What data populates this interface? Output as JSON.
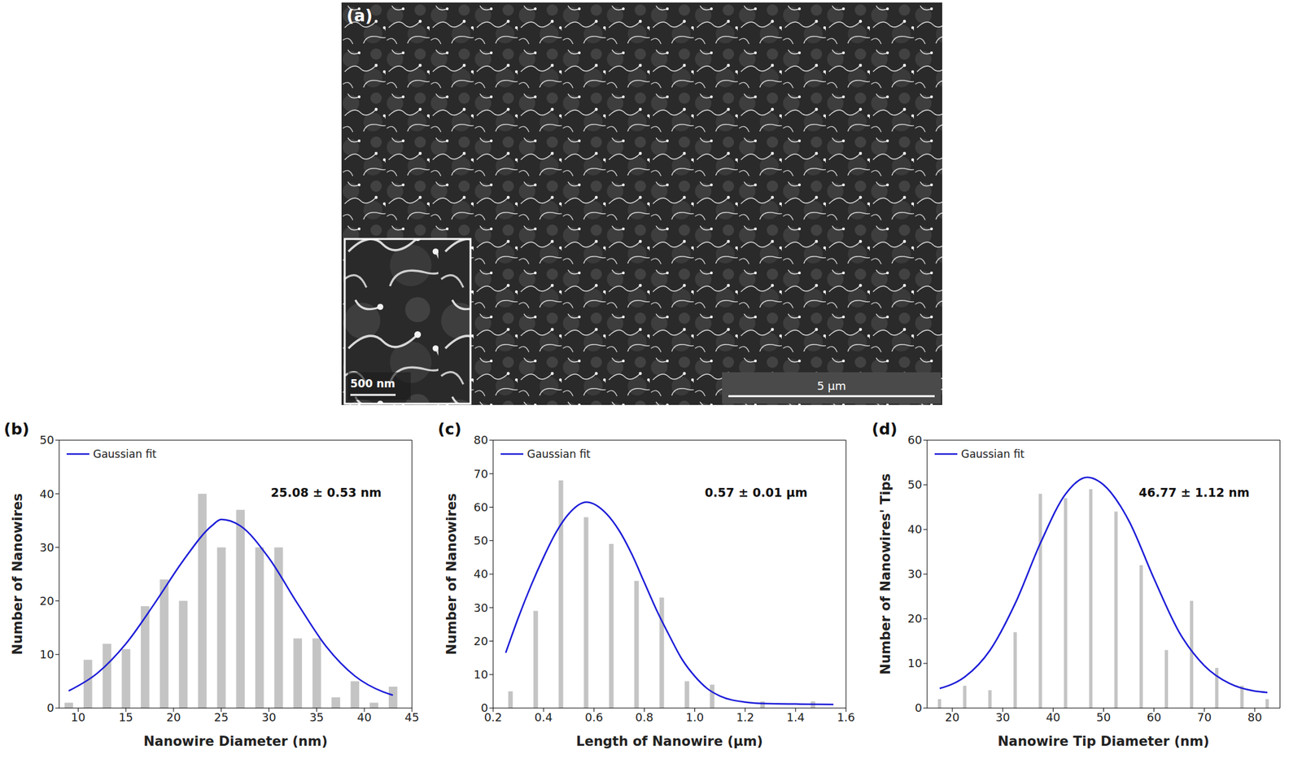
{
  "image": {
    "label": "(a)",
    "scale_bar": "5 µm",
    "inset_scale_bar": "500 nm"
  },
  "chart_data": [
    {
      "type": "histogram",
      "label": "(b)",
      "xlabel": "Nanowire Diameter (nm)",
      "ylabel": "Number of Nanowires",
      "annotation": "25.08 ± 0.53 nm",
      "bins": [
        8,
        10,
        12,
        14,
        16,
        18,
        20,
        22,
        24,
        26,
        28,
        30,
        32,
        34,
        36,
        38,
        40,
        42,
        44
      ],
      "values": [
        1,
        9,
        12,
        11,
        19,
        24,
        20,
        40,
        30,
        37,
        30,
        30,
        13,
        13,
        2,
        5,
        1,
        4
      ],
      "color": "#c4c4c4",
      "xlim": [
        8,
        45
      ],
      "xticks": [
        10,
        15,
        20,
        25,
        30,
        35,
        40,
        45
      ],
      "ylim": [
        0,
        50
      ],
      "yticks": [
        0,
        10,
        20,
        30,
        40,
        50
      ],
      "legend": "upper left",
      "series": [
        {
          "name": "Gaussian fit",
          "type": "line",
          "color": "#1c1cd8",
          "x": [
            9,
            12,
            15,
            18,
            21,
            24,
            25,
            27,
            30,
            33,
            36,
            39,
            42,
            43
          ],
          "values": [
            3.2,
            6.5,
            12,
            19.5,
            27.5,
            34,
            35.2,
            34,
            28,
            19.5,
            11.5,
            6,
            3,
            2.4
          ]
        }
      ]
    },
    {
      "type": "histogram",
      "label": "(c)",
      "xlabel": "Length of Nanowire (μm)",
      "ylabel": "Number of Nanowires",
      "annotation": "0.57 ± 0.01 μm",
      "bins": [
        0.22,
        0.32,
        0.42,
        0.52,
        0.62,
        0.72,
        0.82,
        0.92,
        1.02,
        1.12,
        1.22,
        1.32,
        1.42,
        1.52
      ],
      "values": [
        5,
        29,
        68,
        57,
        49,
        38,
        33,
        8,
        7,
        0,
        2,
        0,
        2
      ],
      "color": "#c4c4c4",
      "xlim": [
        0.2,
        1.6
      ],
      "xticks": [
        0.2,
        0.4,
        0.6,
        0.8,
        {
          "value": 1,
          "label": "1.0"
        },
        1.2,
        1.4,
        1.6
      ],
      "ylim": [
        0,
        80
      ],
      "yticks": [
        0,
        10,
        20,
        30,
        40,
        50,
        60,
        70,
        80
      ],
      "legend": "upper left",
      "series": [
        {
          "name": "Gaussian fit",
          "type": "line",
          "color": "#1c1cd8",
          "x": [
            0.25,
            0.3,
            0.35,
            0.4,
            0.45,
            0.5,
            0.57,
            0.65,
            0.7,
            0.75,
            0.8,
            0.85,
            0.9,
            0.95,
            1.0,
            1.05,
            1.1,
            1.2,
            1.3,
            1.4,
            1.55
          ],
          "values": [
            16.5,
            27,
            36.5,
            45,
            52.5,
            58,
            61.5,
            58,
            53,
            46,
            37.5,
            29,
            21.5,
            14.5,
            9.5,
            5.8,
            3.6,
            1.8,
            1.3,
            1.2,
            1.1
          ]
        }
      ]
    },
    {
      "type": "histogram",
      "label": "(d)",
      "xlabel": "Nanowire Tip Diameter (nm)",
      "ylabel": "Number of Nanowires' Tips",
      "annotation": "46.77 ± 1.12 nm",
      "bins": [
        15,
        20,
        25,
        30,
        35,
        40,
        45,
        50,
        55,
        60,
        65,
        70,
        75,
        80,
        85
      ],
      "values": [
        2,
        5,
        4,
        17,
        48,
        47,
        49,
        44,
        32,
        13,
        24,
        9,
        5,
        2
      ],
      "color": "#c4c4c4",
      "xlim": [
        15,
        85
      ],
      "xticks": [
        20,
        30,
        40,
        50,
        60,
        70,
        80
      ],
      "ylim": [
        0,
        60
      ],
      "yticks": [
        0,
        10,
        20,
        30,
        40,
        50,
        60
      ],
      "legend": "upper left",
      "series": [
        {
          "name": "Gaussian fit",
          "type": "line",
          "color": "#1c1cd8",
          "x": [
            17.5,
            22.5,
            27.5,
            32.5,
            37.5,
            42.5,
            46.77,
            50,
            55,
            60,
            65,
            70,
            75,
            80,
            82.5
          ],
          "values": [
            4.4,
            7,
            13,
            23.5,
            37,
            48,
            51.7,
            50,
            42,
            29,
            17,
            9.5,
            5.5,
            3.8,
            3.5
          ]
        }
      ]
    }
  ]
}
